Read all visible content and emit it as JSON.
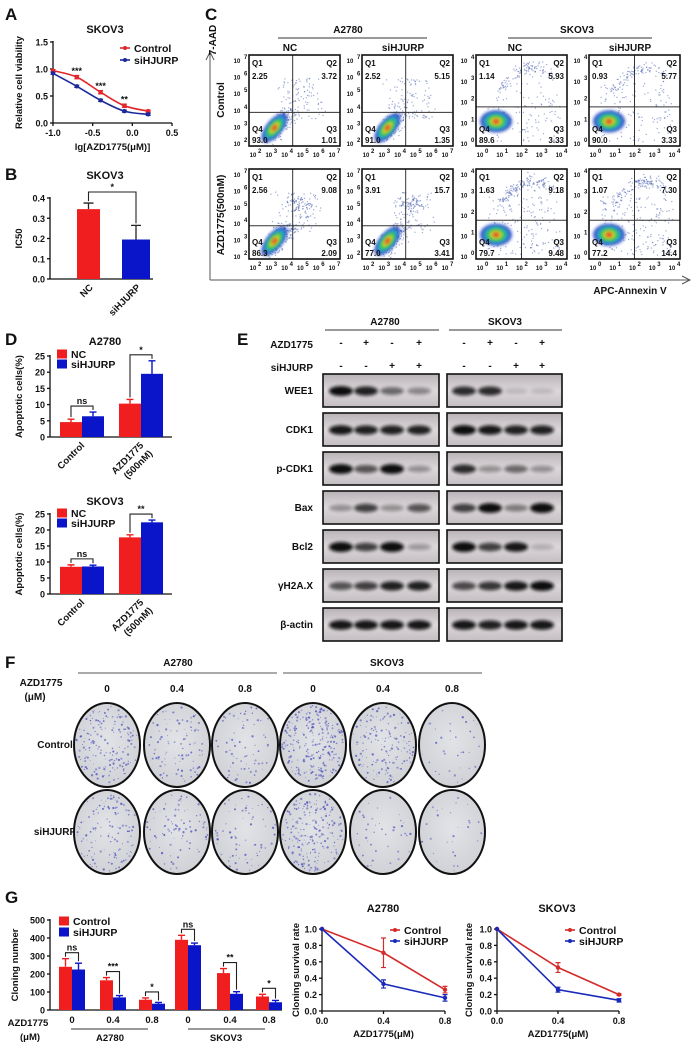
{
  "panel_labels": [
    "A",
    "B",
    "C",
    "D",
    "E",
    "F",
    "G"
  ],
  "chart_data": [
    {
      "type": "line",
      "title": "SKOV3",
      "xlabel": "lg[AZD1775(μM)]",
      "ylabel": "Relative cell viability",
      "xlim": [
        -1.0,
        0.5
      ],
      "ylim": [
        0,
        1.5
      ],
      "xticks": [
        "-1.0",
        "-0.5",
        "0.0",
        "0.5"
      ],
      "yticks": [
        "0.0",
        "0.5",
        "1.0",
        "1.5"
      ],
      "x": [
        -1.0,
        -0.7,
        -0.4,
        -0.1,
        0.2
      ],
      "series": [
        {
          "name": "Control",
          "color": "#e3262b",
          "values": [
            0.97,
            0.85,
            0.57,
            0.32,
            0.22
          ],
          "errors": [
            0.02,
            0.03,
            0.03,
            0.03,
            0.02
          ]
        },
        {
          "name": "siHJURP",
          "color": "#1a2a9a",
          "values": [
            0.92,
            0.68,
            0.42,
            0.22,
            0.16
          ],
          "errors": [
            0.02,
            0.02,
            0.02,
            0.02,
            0.02
          ]
        }
      ],
      "annotations": [
        {
          "x": -0.7,
          "text": "***"
        },
        {
          "x": -0.4,
          "text": "***"
        },
        {
          "x": -0.1,
          "text": "**"
        }
      ],
      "legend": "top-right",
      "grid": false
    },
    {
      "type": "bar",
      "title": "SKOV3",
      "ylabel": "IC50",
      "ylim": [
        0,
        0.4
      ],
      "yticks": [
        "0.0",
        "0.1",
        "0.2",
        "0.3",
        "0.4"
      ],
      "categories": [
        "NC",
        "siHJURP"
      ],
      "values": [
        0.345,
        0.195
      ],
      "errors": [
        0.03,
        0.07
      ],
      "colors": [
        "#f01e1e",
        "#0a14c8"
      ],
      "significance": "*"
    },
    {
      "type": "bar",
      "title": "A2780",
      "ylabel": "Apoptotic cells(%)",
      "ylim": [
        0,
        25
      ],
      "yticks": [
        "0",
        "5",
        "10",
        "15",
        "20",
        "25"
      ],
      "categories": [
        "Control",
        "AZD1775 (500nM)"
      ],
      "category_labels": [
        [
          "Control"
        ],
        [
          "AZD1775",
          "(500nM)"
        ]
      ],
      "series": [
        {
          "name": "NC",
          "color": "#f01e1e",
          "values": [
            4.6,
            10.3
          ],
          "errors": [
            0.9,
            1.3
          ]
        },
        {
          "name": "siHJURP",
          "color": "#0a14c8",
          "values": [
            6.4,
            19.5
          ],
          "errors": [
            1.3,
            4.0
          ]
        }
      ],
      "significance": [
        "ns",
        "*"
      ],
      "legend": "top-left"
    },
    {
      "type": "bar",
      "title": "SKOV3",
      "ylabel": "Apoptotic cells(%)",
      "ylim": [
        0,
        25
      ],
      "yticks": [
        "0",
        "5",
        "10",
        "15",
        "20",
        "25"
      ],
      "categories": [
        "Control",
        "AZD1775 (500nM)"
      ],
      "category_labels": [
        [
          "Control"
        ],
        [
          "AZD1775",
          "(500nM)"
        ]
      ],
      "series": [
        {
          "name": "NC",
          "color": "#f01e1e",
          "values": [
            8.5,
            17.7
          ],
          "errors": [
            0.6,
            0.8
          ]
        },
        {
          "name": "siHJURP",
          "color": "#0a14c8",
          "values": [
            8.6,
            22.4
          ],
          "errors": [
            0.4,
            0.7
          ]
        }
      ],
      "significance": [
        "ns",
        "**"
      ],
      "legend": "top-left"
    },
    {
      "type": "bar",
      "ylabel": "Cloning number",
      "ylim": [
        0,
        500
      ],
      "yticks": [
        "0",
        "100",
        "200",
        "300",
        "400",
        "500"
      ],
      "categories": [
        "0",
        "0.4",
        "0.8",
        "0",
        "0.4",
        "0.8"
      ],
      "groups": [
        "A2780",
        "SKOV3"
      ],
      "dose_label": [
        "AZD1775",
        "(μM)"
      ],
      "series": [
        {
          "name": "Control",
          "color": "#f01e1e",
          "values": [
            240,
            165,
            57,
            390,
            205,
            75
          ],
          "errors": [
            45,
            15,
            10,
            25,
            25,
            12
          ]
        },
        {
          "name": "siHJURP",
          "color": "#0a14c8",
          "values": [
            225,
            70,
            35,
            360,
            90,
            43
          ],
          "errors": [
            35,
            10,
            7,
            12,
            12,
            10
          ]
        }
      ],
      "significance": [
        "ns",
        "***",
        "*",
        "ns",
        "**",
        "*"
      ],
      "legend": "top-left"
    },
    {
      "type": "line",
      "title": "A2780",
      "xlabel": "AZD1775(μM)",
      "ylabel": "Cloning survival rate",
      "xlim": [
        0,
        0.8
      ],
      "ylim": [
        0,
        1.0
      ],
      "xticks": [
        "0.0",
        "0.4",
        "0.8"
      ],
      "yticks": [
        "0.0",
        "0.2",
        "0.4",
        "0.6",
        "0.8",
        "1.0"
      ],
      "x": [
        0,
        0.4,
        0.8
      ],
      "series": [
        {
          "name": "Control",
          "color": "#d62a2a",
          "values": [
            1.0,
            0.71,
            0.26
          ],
          "errors": [
            0,
            0.18,
            0.04
          ]
        },
        {
          "name": "siHJURP",
          "color": "#1a2ab8",
          "values": [
            1.0,
            0.33,
            0.16
          ],
          "errors": [
            0,
            0.05,
            0.04
          ]
        }
      ],
      "legend": "top-right"
    },
    {
      "type": "line",
      "title": "SKOV3",
      "xlabel": "AZD1775(μM)",
      "ylabel": "Cloning survival rate",
      "xlim": [
        0,
        0.8
      ],
      "ylim": [
        0,
        1.0
      ],
      "xticks": [
        "0.0",
        "0.4",
        "0.8"
      ],
      "yticks": [
        "0.0",
        "0.2",
        "0.4",
        "0.6",
        "0.8",
        "1.0"
      ],
      "x": [
        0,
        0.4,
        0.8
      ],
      "series": [
        {
          "name": "Control",
          "color": "#d62a2a",
          "values": [
            1.0,
            0.53,
            0.2
          ],
          "errors": [
            0,
            0.06,
            0.01
          ]
        },
        {
          "name": "siHJURP",
          "color": "#1a2ab8",
          "values": [
            1.0,
            0.26,
            0.13
          ],
          "errors": [
            0,
            0.03,
            0.02
          ]
        }
      ],
      "legend": "top-right"
    }
  ],
  "flow_cytometry": {
    "y_label": "7-AAD",
    "x_label": "APC-Annexin V",
    "rows": [
      "Control",
      "AZD1775(500nM)"
    ],
    "quadrant_names": [
      "Q1",
      "Q2",
      "Q3",
      "Q4"
    ],
    "tick_base": "10",
    "cell_lines": [
      {
        "name": "A2780",
        "columns": [
          "NC",
          "siHJURP"
        ],
        "y_exponents": [
          "2",
          "3",
          "4",
          "5",
          "6",
          "7"
        ],
        "x_exponents": [
          "2",
          "3",
          "4",
          "5",
          "6",
          "7"
        ]
      },
      {
        "name": "SKOV3",
        "columns": [
          "NC",
          "siHJURP"
        ],
        "y_exponents": [
          "0",
          "1",
          "2",
          "3",
          "4"
        ],
        "x_exponents": [
          "0",
          "1",
          "2",
          "3",
          "4"
        ]
      }
    ],
    "panels": [
      [
        {
          "q1": "2.25",
          "q2": "3.72",
          "q3": "1.01",
          "q4": "93.0"
        },
        {
          "q1": "2.52",
          "q2": "5.15",
          "q3": "1.35",
          "q4": "91.0"
        },
        {
          "q1": "1.14",
          "q2": "5.93",
          "q3": "3.33",
          "q4": "89.6"
        },
        {
          "q1": "0.93",
          "q2": "5.77",
          "q3": "3.33",
          "q4": "90.0"
        }
      ],
      [
        {
          "q1": "2.56",
          "q2": "9.08",
          "q3": "2.09",
          "q4": "86.3"
        },
        {
          "q1": "3.91",
          "q2": "15.7",
          "q3": "3.41",
          "q4": "77.0"
        },
        {
          "q1": "1.63",
          "q2": "9.18",
          "q3": "9.48",
          "q4": "79.7"
        },
        {
          "q1": "1.07",
          "q2": "7.30",
          "q3": "14.4",
          "q4": "77.2"
        }
      ]
    ]
  },
  "western_blot": {
    "cell_lines": [
      "A2780",
      "SKOV3"
    ],
    "treatments": [
      {
        "name": "AZD1775",
        "signs": [
          "-",
          "+",
          "-",
          "+"
        ]
      },
      {
        "name": "siHJURP",
        "signs": [
          "-",
          "-",
          "+",
          "+"
        ]
      }
    ],
    "proteins": [
      {
        "name": "WEE1",
        "band_intensity": {
          "A2780": [
            0.95,
            0.85,
            0.5,
            0.35
          ],
          "SKOV3": [
            0.8,
            0.8,
            0.1,
            0.1
          ]
        }
      },
      {
        "name": "CDK1",
        "band_intensity": {
          "A2780": [
            0.9,
            0.85,
            0.85,
            0.85
          ],
          "SKOV3": [
            0.95,
            0.9,
            0.85,
            0.85
          ]
        }
      },
      {
        "name": "p-CDK1",
        "band_intensity": {
          "A2780": [
            0.95,
            0.6,
            0.95,
            0.3
          ],
          "SKOV3": [
            0.8,
            0.3,
            0.5,
            0.3
          ]
        }
      },
      {
        "name": "Bax",
        "band_intensity": {
          "A2780": [
            0.3,
            0.7,
            0.3,
            0.6
          ],
          "SKOV3": [
            0.7,
            0.95,
            0.4,
            1.0
          ]
        }
      },
      {
        "name": "Bcl2",
        "band_intensity": {
          "A2780": [
            1.0,
            0.7,
            1.0,
            0.25
          ],
          "SKOV3": [
            1.0,
            0.7,
            0.9,
            0.15
          ]
        }
      },
      {
        "name": "γH2A.X",
        "band_intensity": {
          "A2780": [
            0.6,
            0.7,
            0.85,
            0.85
          ],
          "SKOV3": [
            0.65,
            0.75,
            0.9,
            0.95
          ]
        }
      },
      {
        "name": "β-actin",
        "band_intensity": {
          "A2780": [
            0.9,
            0.9,
            0.9,
            0.9
          ],
          "SKOV3": [
            0.9,
            0.85,
            0.9,
            0.9
          ]
        }
      }
    ]
  },
  "colony_formation": {
    "cell_lines": [
      "A2780",
      "SKOV3"
    ],
    "dose_label": [
      "AZD1775",
      "(μM)"
    ],
    "doses": [
      "0",
      "0.4",
      "0.8",
      "0",
      "0.4",
      "0.8"
    ],
    "rows": [
      "Control",
      "siHJURP"
    ],
    "colony_density": [
      [
        0.6,
        0.35,
        0.25,
        0.9,
        0.55,
        0.12
      ],
      [
        0.45,
        0.3,
        0.25,
        0.75,
        0.15,
        0.1
      ]
    ]
  }
}
